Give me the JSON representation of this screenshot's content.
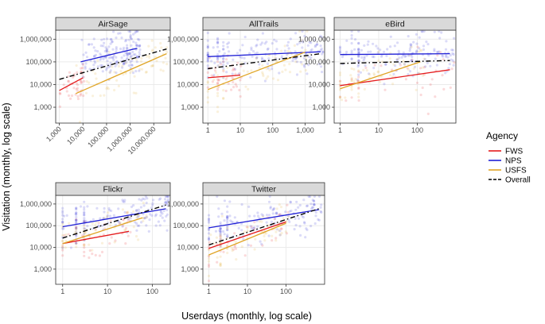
{
  "chart_data": {
    "type": "scatter",
    "xlabel": "Userdays (monthly, log scale)",
    "ylabel": "Visitation (monthly, log scale)",
    "legend": {
      "title": "Agency",
      "position": "right",
      "entries": [
        {
          "name": "FWS",
          "color": "#e41a1c",
          "dash": "solid"
        },
        {
          "name": "NPS",
          "color": "#1f1fd6",
          "dash": "solid"
        },
        {
          "name": "USFS",
          "color": "#e0a526",
          "dash": "solid"
        },
        {
          "name": "Overall",
          "color": "#000000",
          "dash": "dashed"
        }
      ]
    },
    "y_scale": "log10",
    "y_ticks": [
      1000,
      10000,
      100000,
      1000000
    ],
    "y_tick_labels": [
      "1,000",
      "10,000",
      "100,000",
      "1,000,000"
    ],
    "y_range": [
      200,
      2500000
    ],
    "panels": [
      {
        "title": "AirSage",
        "x_range": [
          700,
          50000000
        ],
        "x_ticks": [
          1000,
          10000,
          100000,
          1000000,
          10000000
        ],
        "x_tick_labels": [
          "1,000",
          "10,000",
          "100,000",
          "1,000,000",
          "10,000,000"
        ],
        "rotate_x_labels": true,
        "fits": [
          {
            "series": "FWS",
            "x": [
              1000,
              10000
            ],
            "y": [
              5500,
              20000
            ]
          },
          {
            "series": "NPS",
            "x": [
              8000,
              2000000
            ],
            "y": [
              100000,
              400000
            ]
          },
          {
            "series": "USFS",
            "x": [
              5000,
              35000000
            ],
            "y": [
              4000,
              230000
            ]
          },
          {
            "series": "Overall",
            "x": [
              1000,
              35000000
            ],
            "y": [
              17000,
              370000
            ]
          }
        ]
      },
      {
        "title": "AllTrails",
        "x_range": [
          0.7,
          4000
        ],
        "x_ticks": [
          1,
          10,
          100,
          1000
        ],
        "x_tick_labels": [
          "1",
          "10",
          "100",
          "1,000"
        ],
        "fits": [
          {
            "series": "FWS",
            "x": [
              1,
              10
            ],
            "y": [
              20000,
              26000
            ]
          },
          {
            "series": "NPS",
            "x": [
              1,
              3000
            ],
            "y": [
              170000,
              280000
            ]
          },
          {
            "series": "USFS",
            "x": [
              1,
              1000
            ],
            "y": [
              6000,
              270000
            ]
          },
          {
            "series": "Overall",
            "x": [
              1,
              3000
            ],
            "y": [
              50000,
              230000
            ]
          }
        ]
      },
      {
        "title": "eBird",
        "x_range": [
          0.7,
          1000
        ],
        "x_ticks": [
          1,
          10,
          100
        ],
        "x_tick_labels": [
          "1",
          "10",
          "100"
        ],
        "fits": [
          {
            "series": "FWS",
            "x": [
              1,
              700
            ],
            "y": [
              9000,
              45000
            ]
          },
          {
            "series": "NPS",
            "x": [
              1,
              700
            ],
            "y": [
              210000,
              230000
            ]
          },
          {
            "series": "USFS",
            "x": [
              1,
              120
            ],
            "y": [
              6500,
              100000
            ]
          },
          {
            "series": "Overall",
            "x": [
              1,
              700
            ],
            "y": [
              85000,
              115000
            ]
          }
        ]
      },
      {
        "title": "Flickr",
        "x_range": [
          0.7,
          250
        ],
        "x_ticks": [
          1,
          10,
          100
        ],
        "x_tick_labels": [
          "1",
          "10",
          "100"
        ],
        "fits": [
          {
            "series": "FWS",
            "x": [
              1,
              30
            ],
            "y": [
              15000,
              55000
            ]
          },
          {
            "series": "NPS",
            "x": [
              1,
              200
            ],
            "y": [
              90000,
              600000
            ]
          },
          {
            "series": "USFS",
            "x": [
              1,
              60
            ],
            "y": [
              15000,
              230000
            ]
          },
          {
            "series": "Overall",
            "x": [
              1,
              200
            ],
            "y": [
              27000,
              900000
            ]
          }
        ]
      },
      {
        "title": "Twitter",
        "x_range": [
          0.7,
          1000
        ],
        "x_ticks": [
          1,
          10,
          100
        ],
        "x_tick_labels": [
          "1",
          "10",
          "100"
        ],
        "fits": [
          {
            "series": "FWS",
            "x": [
              1,
              100
            ],
            "y": [
              9000,
              150000
            ]
          },
          {
            "series": "NPS",
            "x": [
              1,
              700
            ],
            "y": [
              80000,
              550000
            ]
          },
          {
            "series": "USFS",
            "x": [
              1,
              100
            ],
            "y": [
              4500,
              130000
            ]
          },
          {
            "series": "Overall",
            "x": [
              1,
              700
            ],
            "y": [
              13000,
              600000
            ]
          }
        ]
      }
    ]
  }
}
